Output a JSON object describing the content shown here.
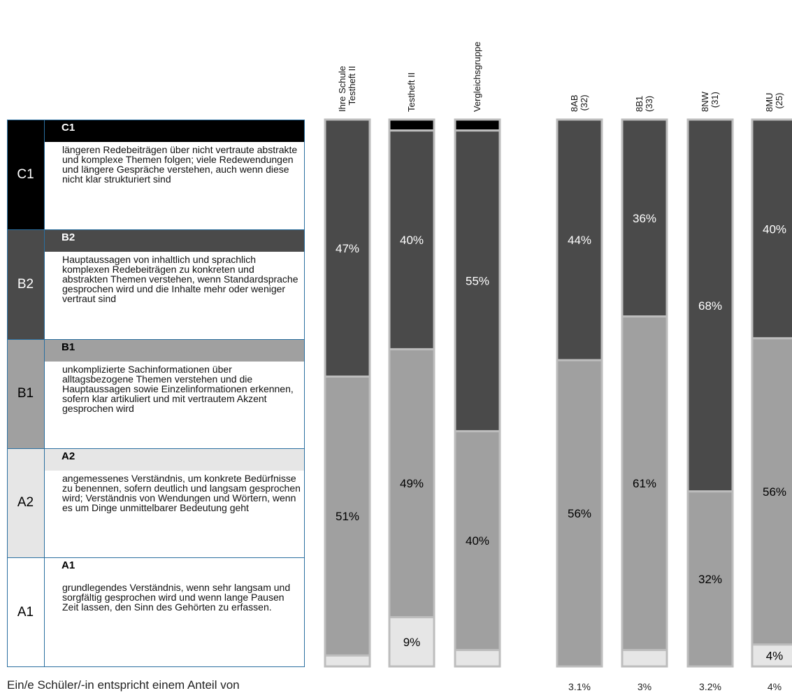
{
  "levels": [
    {
      "code": "C1",
      "title": "C1",
      "text": "längeren Redebeiträgen über nicht vertraute abstrakte und komplexe Themen folgen; viele Redewendungen und längere Gespräche verstehen, auch wenn diese nicht klar strukturiert sind",
      "color": "#000000",
      "text_color": "#ffffff"
    },
    {
      "code": "B2",
      "title": "B2",
      "text": "Hauptaussagen von inhaltlich und sprachlich komplexen Redebeiträgen zu konkreten und abstrakten Themen verstehen, wenn Standardsprache gesprochen wird und die Inhalte mehr oder weniger vertraut sind",
      "color": "#4a4a4a",
      "text_color": "#ffffff"
    },
    {
      "code": "B1",
      "title": "B1",
      "text": "unkomplizierte Sachinformationen über alltagsbezogene Themen verstehen und die Hauptaussagen sowie Einzelinformationen erkennen, sofern klar artikuliert und mit vertrautem Akzent gesprochen wird",
      "color": "#a0a0a0",
      "text_color": "#000000"
    },
    {
      "code": "A2",
      "title": "A2",
      "text": "angemessenes Verständnis, um konkrete Bedürfnisse zu benennen, sofern deutlich und langsam gesprochen wird; Verständnis von Wendungen und Wörtern, wenn es um Dinge unmittelbarer Bedeutung geht",
      "color": "#e6e6e6",
      "text_color": "#000000"
    },
    {
      "code": "A1",
      "title": "A1",
      "text": "grundlegendes Verständnis, wenn sehr langsam und sorgfältig gesprochen wird und wenn lange Pausen Zeit lassen, den Sinn des Gehörten zu erfassen.",
      "color": "#ffffff",
      "text_color": "#000000"
    }
  ],
  "footnote": "Ein/e Schüler/-in entspricht einem Anteil von",
  "chart_data": {
    "type": "bar",
    "stacked": true,
    "orientation": "vertical",
    "ylim": [
      0,
      100
    ],
    "categories": [
      {
        "label": "Ihre Schule\nTestheft II",
        "lines": [
          "Ihre Schule",
          "Testheft II"
        ]
      },
      {
        "label": "Testheft II",
        "lines": [
          "Testheft II"
        ]
      },
      {
        "label": "Vergleichsgruppe",
        "lines": [
          "Vergleichsgruppe"
        ]
      },
      {
        "label": "8AB\n(32)",
        "lines": [
          "8AB",
          "(32)"
        ]
      },
      {
        "label": "8B1\n(33)",
        "lines": [
          "8B1",
          "(33)"
        ]
      },
      {
        "label": "8NW\n(31)",
        "lines": [
          "8NW",
          "(31)"
        ]
      },
      {
        "label": "8MU\n(25)",
        "lines": [
          "8MU",
          "(25)"
        ]
      }
    ],
    "series": [
      {
        "name": "C1",
        "color": "#000000",
        "values": [
          0,
          2,
          2,
          0,
          0,
          0,
          0
        ],
        "labels": [
          "",
          "",
          "",
          "",
          "",
          "",
          ""
        ]
      },
      {
        "name": "B2",
        "color": "#4a4a4a",
        "values": [
          47,
          40,
          55,
          44,
          36,
          68,
          40
        ],
        "labels": [
          "47%",
          "40%",
          "55%",
          "44%",
          "36%",
          "68%",
          "40%"
        ]
      },
      {
        "name": "B1",
        "color": "#a0a0a0",
        "values": [
          51,
          49,
          40,
          56,
          61,
          32,
          56
        ],
        "labels": [
          "51%",
          "49%",
          "40%",
          "56%",
          "61%",
          "32%",
          "56%"
        ]
      },
      {
        "name": "A2",
        "color": "#e6e6e6",
        "values": [
          2,
          9,
          3,
          0,
          3,
          0,
          4
        ],
        "labels": [
          "",
          "9%",
          "",
          "",
          "",
          "",
          "4%"
        ]
      },
      {
        "name": "A1",
        "color": "#ffffff",
        "values": [
          0,
          0,
          0,
          0,
          0,
          0,
          0
        ],
        "labels": [
          "",
          "",
          "",
          "",
          "",
          "",
          ""
        ]
      }
    ],
    "per_student_share": [
      "",
      "",
      "",
      "3.1%",
      "3%",
      "3.2%",
      "4%"
    ]
  }
}
